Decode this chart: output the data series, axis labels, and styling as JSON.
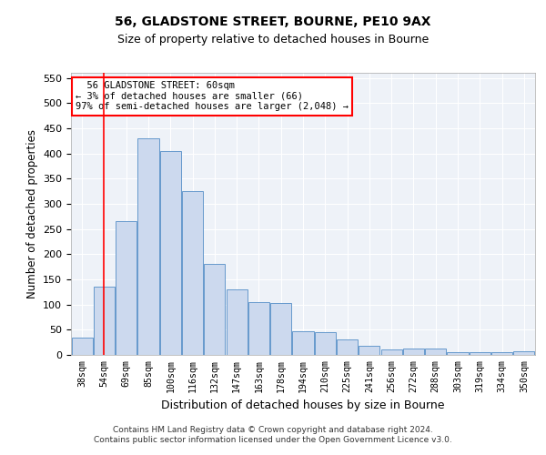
{
  "title1": "56, GLADSTONE STREET, BOURNE, PE10 9AX",
  "title2": "Size of property relative to detached houses in Bourne",
  "xlabel": "Distribution of detached houses by size in Bourne",
  "ylabel": "Number of detached properties",
  "categories": [
    "38sqm",
    "54sqm",
    "69sqm",
    "85sqm",
    "100sqm",
    "116sqm",
    "132sqm",
    "147sqm",
    "163sqm",
    "178sqm",
    "194sqm",
    "210sqm",
    "225sqm",
    "241sqm",
    "256sqm",
    "272sqm",
    "288sqm",
    "303sqm",
    "319sqm",
    "334sqm",
    "350sqm"
  ],
  "values": [
    35,
    135,
    265,
    430,
    405,
    325,
    180,
    130,
    105,
    103,
    47,
    45,
    30,
    18,
    10,
    12,
    12,
    5,
    5,
    5,
    8
  ],
  "bar_color": "#ccd9ee",
  "bar_edge_color": "#6699cc",
  "annotation_line1": "  56 GLADSTONE STREET: 60sqm",
  "annotation_line2": "← 3% of detached houses are smaller (66)",
  "annotation_line3": "97% of semi-detached houses are larger (2,048) →",
  "red_line_x": 1.0,
  "ylim": [
    0,
    560
  ],
  "yticks": [
    0,
    50,
    100,
    150,
    200,
    250,
    300,
    350,
    400,
    450,
    500,
    550
  ],
  "background_color": "#eef2f8",
  "footer_line1": "Contains HM Land Registry data © Crown copyright and database right 2024.",
  "footer_line2": "Contains public sector information licensed under the Open Government Licence v3.0."
}
